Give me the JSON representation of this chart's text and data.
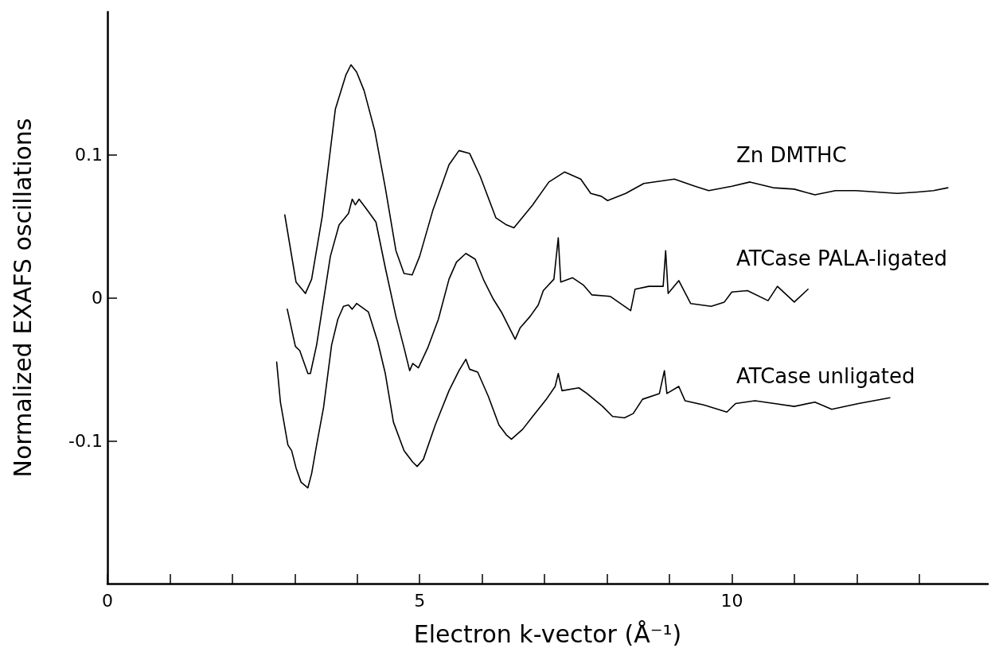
{
  "chart_data": {
    "type": "line",
    "xlabel": "Electron k-vector (Å⁻¹)",
    "ylabel": "Normalized EXAFS oscillations",
    "xlim": [
      0,
      14.1
    ],
    "xticks": [
      0,
      {
        "value": 1,
        "label": null
      },
      {
        "value": 2,
        "label": null
      },
      {
        "value": 3,
        "label": null
      },
      {
        "value": 4,
        "label": null
      },
      {
        "value": 5,
        "label": "5"
      },
      {
        "value": 6,
        "label": null
      },
      {
        "value": 7,
        "label": null
      },
      {
        "value": 8,
        "label": null
      },
      {
        "value": 9,
        "label": null
      },
      {
        "value": 10,
        "label": "10"
      },
      {
        "value": 11,
        "label": null
      },
      {
        "value": 12,
        "label": null
      },
      {
        "value": 13,
        "label": null
      }
    ],
    "ylim": [
      -0.2,
      0.2
    ],
    "yticks": [
      {
        "value": -0.1,
        "label": "-0.1"
      },
      0,
      0.1
    ],
    "marker": "none",
    "line_style": "solid",
    "series": [
      {
        "name": "Zn DMTHC",
        "color": "#000000",
        "x": [
          2.84,
          3.02,
          3.17,
          3.27,
          3.44,
          3.65,
          3.82,
          3.9,
          3.99,
          4.11,
          4.28,
          4.45,
          4.62,
          4.75,
          4.88,
          5.0,
          5.21,
          5.47,
          5.63,
          5.8,
          5.97,
          6.22,
          6.39,
          6.51,
          6.81,
          7.07,
          7.32,
          7.58,
          7.74,
          7.91,
          8.01,
          8.3,
          8.59,
          9.08,
          9.41,
          9.63,
          10.0,
          10.29,
          10.66,
          11.0,
          11.33,
          11.66,
          11.99,
          12.32,
          12.65,
          12.98,
          13.23,
          13.46
        ],
        "values": [
          0.058,
          0.011,
          0.003,
          0.013,
          0.057,
          0.132,
          0.156,
          0.163,
          0.158,
          0.145,
          0.117,
          0.077,
          0.033,
          0.017,
          0.016,
          0.029,
          0.061,
          0.093,
          0.103,
          0.101,
          0.085,
          0.056,
          0.051,
          0.049,
          0.065,
          0.081,
          0.088,
          0.083,
          0.073,
          0.071,
          0.068,
          0.073,
          0.08,
          0.083,
          0.078,
          0.075,
          0.078,
          0.081,
          0.077,
          0.076,
          0.072,
          0.075,
          0.075,
          0.074,
          0.073,
          0.074,
          0.075,
          0.077
        ]
      },
      {
        "name": "ATCase PALA-ligated",
        "color": "#000000",
        "x": [
          2.88,
          3.01,
          3.08,
          3.21,
          3.25,
          3.35,
          3.57,
          3.71,
          3.86,
          3.92,
          3.97,
          4.03,
          4.15,
          4.3,
          4.45,
          4.62,
          4.75,
          4.84,
          4.89,
          4.98,
          5.13,
          5.3,
          5.47,
          5.59,
          5.74,
          5.89,
          6.03,
          6.18,
          6.31,
          6.46,
          6.53,
          6.61,
          6.77,
          6.9,
          6.98,
          7.15,
          7.22,
          7.26,
          7.45,
          7.62,
          7.76,
          8.05,
          8.38,
          8.45,
          8.67,
          8.9,
          8.94,
          8.98,
          9.15,
          9.34,
          9.67,
          9.88,
          10.0,
          10.25,
          10.58,
          10.73,
          11.0,
          11.22
        ],
        "values": [
          -0.008,
          -0.034,
          -0.037,
          -0.053,
          -0.053,
          -0.033,
          0.029,
          0.051,
          0.059,
          0.069,
          0.065,
          0.069,
          0.062,
          0.053,
          0.021,
          -0.013,
          -0.035,
          -0.051,
          -0.046,
          -0.049,
          -0.035,
          -0.015,
          0.013,
          0.025,
          0.031,
          0.027,
          0.012,
          -0.001,
          -0.01,
          -0.023,
          -0.029,
          -0.021,
          -0.013,
          -0.005,
          0.005,
          0.013,
          0.042,
          0.011,
          0.014,
          0.009,
          0.002,
          0.001,
          -0.009,
          0.006,
          0.008,
          0.008,
          0.033,
          0.003,
          0.012,
          -0.004,
          -0.006,
          -0.003,
          0.004,
          0.005,
          -0.002,
          0.008,
          -0.003,
          0.006
        ]
      },
      {
        "name": "ATCase unligated",
        "color": "#000000",
        "x": [
          2.71,
          2.77,
          2.89,
          2.95,
          3.02,
          3.1,
          3.21,
          3.27,
          3.35,
          3.46,
          3.59,
          3.69,
          3.78,
          3.86,
          3.92,
          3.99,
          4.18,
          4.33,
          4.45,
          4.58,
          4.75,
          4.89,
          4.96,
          5.06,
          5.25,
          5.47,
          5.63,
          5.74,
          5.8,
          5.93,
          6.1,
          6.27,
          6.39,
          6.47,
          6.65,
          6.81,
          7.03,
          7.17,
          7.22,
          7.28,
          7.55,
          7.68,
          7.93,
          8.09,
          8.28,
          8.42,
          8.57,
          8.84,
          8.92,
          8.96,
          9.15,
          9.25,
          9.55,
          9.92,
          10.06,
          10.37,
          11.0,
          11.33,
          11.6,
          12.03,
          12.53
        ],
        "values": [
          -0.045,
          -0.073,
          -0.103,
          -0.107,
          -0.119,
          -0.129,
          -0.133,
          -0.123,
          -0.103,
          -0.077,
          -0.033,
          -0.015,
          -0.006,
          -0.005,
          -0.008,
          -0.004,
          -0.01,
          -0.031,
          -0.053,
          -0.087,
          -0.107,
          -0.115,
          -0.118,
          -0.113,
          -0.089,
          -0.065,
          -0.051,
          -0.043,
          -0.05,
          -0.052,
          -0.069,
          -0.089,
          -0.096,
          -0.099,
          -0.092,
          -0.083,
          -0.071,
          -0.062,
          -0.053,
          -0.065,
          -0.063,
          -0.067,
          -0.076,
          -0.083,
          -0.084,
          -0.081,
          -0.071,
          -0.067,
          -0.051,
          -0.067,
          -0.062,
          -0.072,
          -0.075,
          -0.08,
          -0.074,
          -0.072,
          -0.076,
          -0.073,
          -0.078,
          -0.074,
          -0.07
        ]
      }
    ]
  }
}
